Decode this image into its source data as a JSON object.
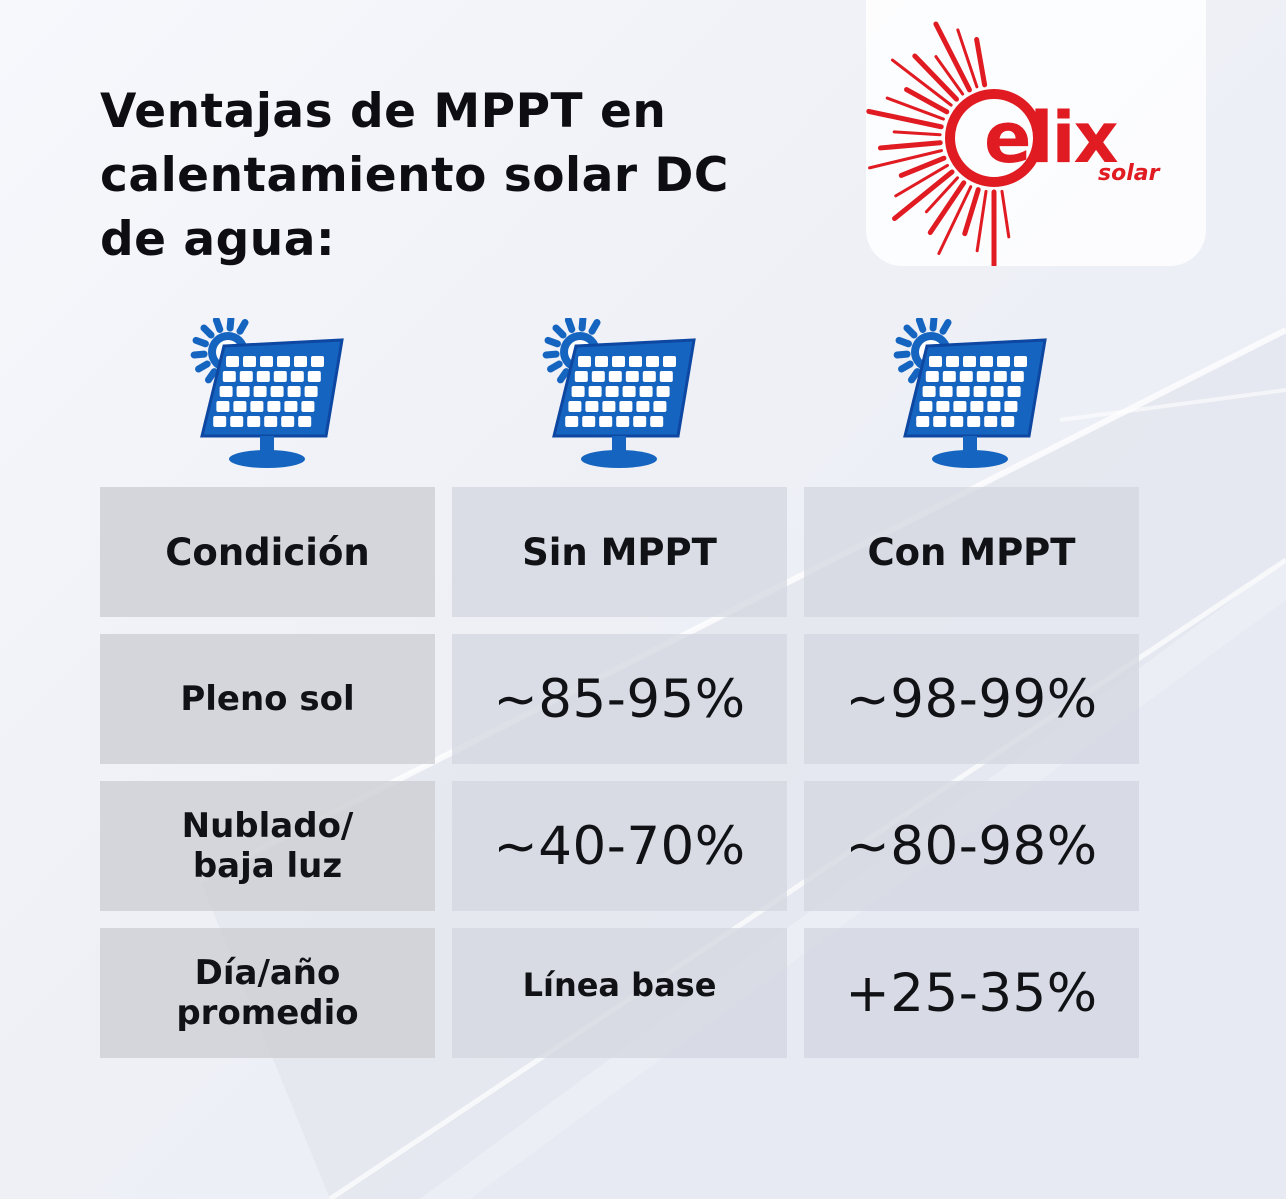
{
  "title_lines": [
    "Ventajas de MPPT en",
    "calentamiento solar DC",
    "de agua:"
  ],
  "logo": {
    "brand": "elix",
    "sub": "solar",
    "color": "#e01b22"
  },
  "icons": [
    "solar-panel-sun-icon",
    "solar-panel-sun-icon",
    "solar-panel-sun-icon"
  ],
  "table": {
    "headers": [
      "Condición",
      "Sin MPPT",
      "Con MPPT"
    ],
    "rows": [
      {
        "condition": [
          "Pleno sol"
        ],
        "sin": "~85-95%",
        "con": "~98-99%"
      },
      {
        "condition": [
          "Nublado/",
          "baja luz"
        ],
        "sin": "~40-70%",
        "con": "~80-98%"
      },
      {
        "condition": [
          "Día/año",
          "promedio"
        ],
        "sin": "Línea base",
        "con": "+25-35%"
      }
    ]
  },
  "colors": {
    "icon_blue": "#1565c0",
    "text": "#111216"
  }
}
